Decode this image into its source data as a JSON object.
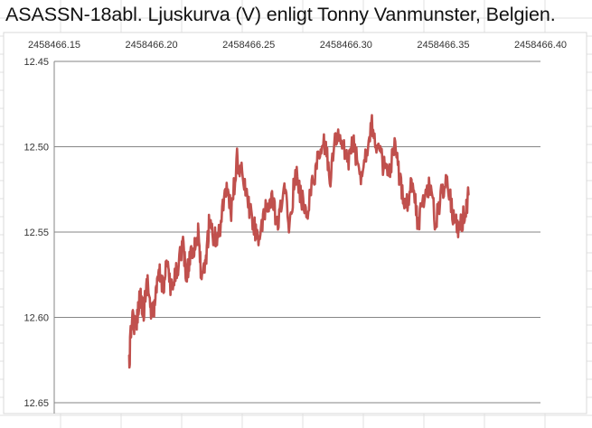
{
  "chart_data": {
    "type": "line",
    "title": "ASASSN-18abl. Ljuskurva (V) enligt Tonny Vanmunster, Belgien.",
    "xlabel": "",
    "ylabel": "",
    "xlim": [
      2458466.15,
      2458466.4
    ],
    "ylim": [
      12.45,
      12.65
    ],
    "y_inverted": true,
    "x_axis_position": "top",
    "x_ticks": [
      "2458466.15",
      "2458466.20",
      "2458466.25",
      "2458466.30",
      "2458466.35",
      "2458466.40"
    ],
    "y_ticks": [
      "12.45",
      "12.50",
      "12.55",
      "12.60",
      "12.65"
    ],
    "grid": "horizontal",
    "series": [
      {
        "color": "#c0504d",
        "x": [
          2458466.1885,
          2458466.19,
          2458466.192,
          2458466.194,
          2458466.196,
          2458466.198,
          2458466.2,
          2458466.202,
          2458466.204,
          2458466.206,
          2458466.208,
          2458466.21,
          2458466.213,
          2458466.216,
          2458466.218,
          2458466.22,
          2458466.222,
          2458466.224,
          2458466.226,
          2458466.228,
          2458466.23,
          2458466.232,
          2458466.235,
          2458466.238,
          2458466.241,
          2458466.244,
          2458466.247,
          2458466.25,
          2458466.253,
          2458466.256,
          2458466.259,
          2458466.262,
          2458466.265,
          2458466.268,
          2458466.271,
          2458466.274,
          2458466.277,
          2458466.28,
          2458466.283,
          2458466.286,
          2458466.289,
          2458466.292,
          2458466.295,
          2458466.298,
          2458466.301,
          2458466.304,
          2458466.307,
          2458466.31,
          2458466.313,
          2458466.316,
          2458466.319,
          2458466.322,
          2458466.325,
          2458466.328,
          2458466.331,
          2458466.334,
          2458466.337,
          2458466.34,
          2458466.343,
          2458466.346,
          2458466.349,
          2458466.352,
          2458466.355,
          2458466.358,
          2458466.361,
          2458466.363
        ],
        "y": [
          12.628,
          12.598,
          12.607,
          12.585,
          12.596,
          12.578,
          12.6,
          12.59,
          12.574,
          12.582,
          12.566,
          12.586,
          12.573,
          12.556,
          12.578,
          12.562,
          12.558,
          12.552,
          12.58,
          12.566,
          12.541,
          12.555,
          12.55,
          12.522,
          12.538,
          12.508,
          12.518,
          12.535,
          12.548,
          12.553,
          12.536,
          12.53,
          12.549,
          12.523,
          12.546,
          12.515,
          12.53,
          12.538,
          12.52,
          12.506,
          12.498,
          12.518,
          12.492,
          12.5,
          12.508,
          12.498,
          12.518,
          12.505,
          12.486,
          12.5,
          12.51,
          12.518,
          12.501,
          12.521,
          12.534,
          12.52,
          12.545,
          12.531,
          12.521,
          12.545,
          12.528,
          12.517,
          12.54,
          12.548,
          12.54,
          12.528
        ]
      }
    ]
  }
}
